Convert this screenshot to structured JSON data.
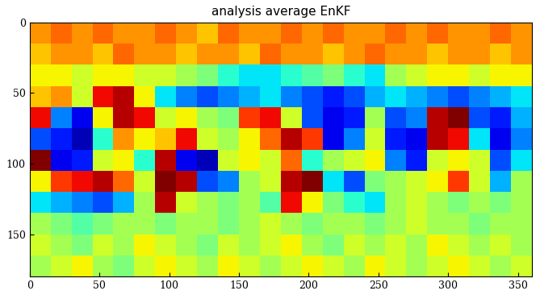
{
  "chart_data": {
    "type": "heatmap",
    "title": "analysis average EnKF",
    "xlim": [
      0,
      360
    ],
    "ylim": [
      180,
      0
    ],
    "xticks": [
      0,
      50,
      100,
      150,
      200,
      250,
      300,
      350
    ],
    "yticks": [
      0,
      50,
      100,
      150
    ],
    "color": "jet",
    "cell_range": [
      -1,
      1
    ],
    "cells": [
      [
        0.5,
        0.6,
        0.5,
        0.6,
        0.5,
        0.5,
        0.6,
        0.5,
        0.4,
        0.6,
        0.5,
        0.5,
        0.6,
        0.5,
        0.6,
        0.5,
        0.5,
        0.6,
        0.5,
        0.6,
        0.5,
        0.5,
        0.6,
        0.5
      ],
      [
        0.4,
        0.5,
        0.5,
        0.4,
        0.6,
        0.5,
        0.5,
        0.4,
        0.5,
        0.5,
        0.4,
        0.6,
        0.5,
        0.5,
        0.4,
        0.5,
        0.6,
        0.5,
        0.5,
        0.4,
        0.5,
        0.5,
        0.4,
        0.5
      ],
      [
        0.3,
        0.3,
        0.2,
        0.3,
        0.3,
        0.2,
        0.2,
        0.1,
        0.0,
        -0.2,
        -0.3,
        -0.3,
        -0.2,
        -0.1,
        0.0,
        -0.2,
        -0.3,
        0.1,
        0.2,
        0.3,
        0.3,
        0.2,
        0.3,
        0.3
      ],
      [
        0.4,
        0.5,
        0.2,
        0.8,
        0.9,
        0.3,
        -0.3,
        -0.5,
        -0.6,
        -0.5,
        -0.4,
        -0.3,
        -0.5,
        -0.6,
        -0.7,
        -0.6,
        -0.4,
        -0.3,
        -0.4,
        -0.5,
        -0.6,
        -0.5,
        -0.4,
        -0.3
      ],
      [
        0.8,
        -0.5,
        -0.8,
        0.3,
        0.9,
        0.8,
        0.2,
        0.3,
        0.1,
        0.0,
        0.7,
        0.8,
        0.2,
        -0.6,
        -0.8,
        -0.7,
        0.1,
        -0.6,
        -0.5,
        0.9,
        1.0,
        -0.6,
        -0.7,
        -0.4
      ],
      [
        -0.6,
        -0.7,
        -0.9,
        -0.2,
        0.5,
        0.3,
        0.4,
        0.8,
        0.2,
        0.1,
        0.3,
        0.6,
        0.9,
        0.7,
        -0.8,
        -0.5,
        0.2,
        -0.7,
        -0.8,
        0.9,
        0.8,
        -0.3,
        -0.8,
        -0.5
      ],
      [
        1.0,
        -0.8,
        -0.7,
        0.2,
        0.3,
        -0.2,
        0.9,
        -0.8,
        -0.9,
        0.2,
        0.3,
        0.2,
        0.6,
        -0.2,
        0.1,
        0.2,
        0.3,
        -0.5,
        -0.7,
        0.2,
        0.3,
        0.2,
        -0.6,
        -0.3
      ],
      [
        0.3,
        0.7,
        0.8,
        0.9,
        0.6,
        0.2,
        1.0,
        0.9,
        -0.6,
        -0.5,
        0.1,
        0.2,
        0.9,
        1.0,
        -0.3,
        -0.6,
        0.0,
        0.1,
        0.2,
        0.3,
        0.7,
        0.2,
        -0.4,
        0.1
      ],
      [
        -0.3,
        -0.4,
        -0.5,
        -0.6,
        -0.4,
        0.1,
        0.9,
        0.2,
        0.1,
        0.0,
        0.1,
        -0.1,
        0.8,
        0.3,
        0.0,
        -0.2,
        -0.3,
        0.1,
        0.2,
        0.1,
        0.0,
        0.1,
        0.0,
        0.1
      ],
      [
        0.1,
        0.0,
        -0.1,
        0.0,
        0.1,
        0.1,
        0.0,
        0.1,
        0.1,
        0.0,
        0.1,
        0.2,
        0.1,
        0.0,
        0.1,
        0.1,
        0.0,
        0.1,
        0.2,
        0.1,
        0.1,
        0.0,
        0.1,
        0.1
      ],
      [
        0.2,
        0.1,
        0.0,
        0.2,
        0.1,
        0.3,
        0.2,
        0.1,
        0.0,
        0.2,
        0.1,
        0.2,
        0.3,
        0.1,
        0.0,
        0.2,
        0.1,
        0.2,
        0.1,
        0.3,
        0.2,
        0.1,
        0.2,
        0.1
      ],
      [
        0.1,
        0.2,
        0.3,
        0.1,
        0.0,
        0.2,
        0.3,
        0.2,
        0.1,
        0.3,
        0.2,
        0.1,
        0.2,
        0.3,
        0.2,
        0.1,
        0.3,
        0.2,
        0.1,
        0.2,
        0.3,
        0.2,
        0.1,
        0.2
      ]
    ]
  }
}
